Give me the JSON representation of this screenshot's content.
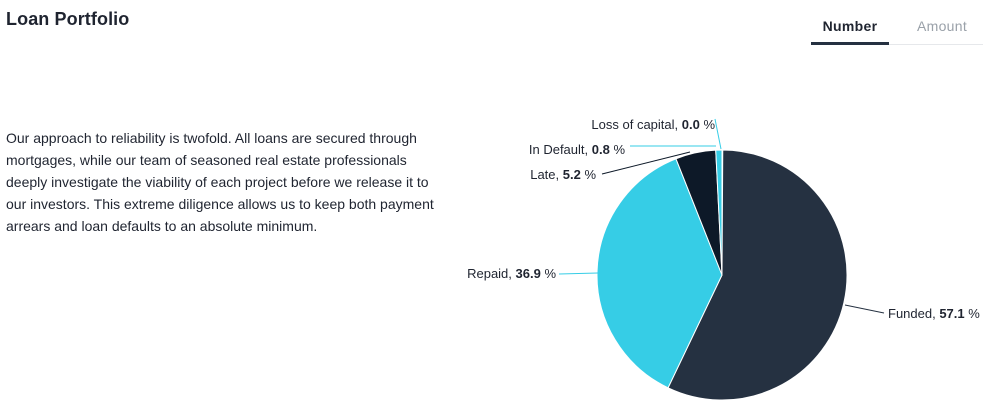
{
  "header": {
    "title": "Loan Portfolio"
  },
  "tabs": [
    {
      "label": "Number",
      "active": true
    },
    {
      "label": "Amount",
      "active": false
    }
  ],
  "intro": {
    "text": "Our approach to reliability is twofold. All loans are secured through mortgages, while our team of seasoned real estate professionals deeply investigate the viability of each project before we release it to our investors. This extreme diligence allows us to keep both payment arrears and loan defaults to an absolute minimum."
  },
  "chart_data": {
    "type": "pie",
    "title": "",
    "value_suffix": " %",
    "slices": [
      {
        "label": "Funded",
        "value": 57.1,
        "value_text": "57.1",
        "color": "#253141"
      },
      {
        "label": "Repaid",
        "value": 36.9,
        "value_text": "36.9",
        "color": "#36cde6"
      },
      {
        "label": "Late",
        "value": 5.2,
        "value_text": "5.2",
        "color": "#0d1928"
      },
      {
        "label": "In Default",
        "value": 0.8,
        "value_text": "0.8",
        "color": "#36cde6"
      },
      {
        "label": "Loss of capital",
        "value": 0.0,
        "value_text": "0.0",
        "color": "#36cde6"
      }
    ]
  }
}
